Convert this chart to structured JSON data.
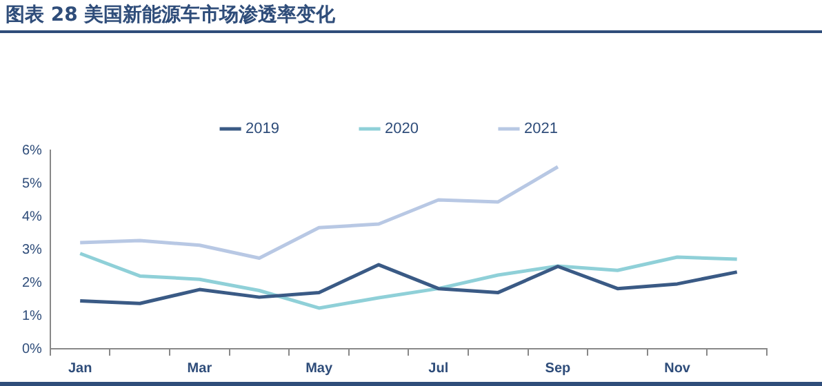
{
  "chart_data": {
    "type": "line",
    "title": "图表 28  美国新能源车市场渗透率变化",
    "categories": [
      "Jan",
      null,
      "Mar",
      null,
      "May",
      null,
      "Jul",
      null,
      "Sep",
      null,
      "Nov",
      null
    ],
    "series": [
      {
        "name": "2019",
        "color": "#3a5a85",
        "values": [
          1.45,
          1.37,
          1.79,
          1.56,
          1.7,
          2.54,
          1.82,
          1.7,
          2.49,
          1.82,
          1.96,
          2.32
        ]
      },
      {
        "name": "2020",
        "color": "#8fd0d8",
        "values": [
          2.88,
          2.2,
          2.1,
          1.76,
          1.23,
          1.54,
          1.82,
          2.23,
          2.5,
          2.37,
          2.77,
          2.71
        ]
      },
      {
        "name": "2021",
        "color": "#b8c8e4",
        "values": [
          3.21,
          3.27,
          3.13,
          2.74,
          3.66,
          3.77,
          4.5,
          4.44,
          5.5,
          null,
          null,
          null
        ]
      }
    ],
    "ylim": [
      0,
      6
    ],
    "yticks": [
      {
        "value": 0,
        "label": "0%"
      },
      {
        "value": 1,
        "label": "1%"
      },
      {
        "value": 2,
        "label": "2%"
      },
      {
        "value": 3,
        "label": "3%"
      },
      {
        "value": 4,
        "label": "4%"
      },
      {
        "value": 5,
        "label": "5%"
      },
      {
        "value": 6,
        "label": "6%"
      }
    ],
    "legend": "top",
    "grid": false,
    "marker": "none",
    "line_style": "solid"
  }
}
